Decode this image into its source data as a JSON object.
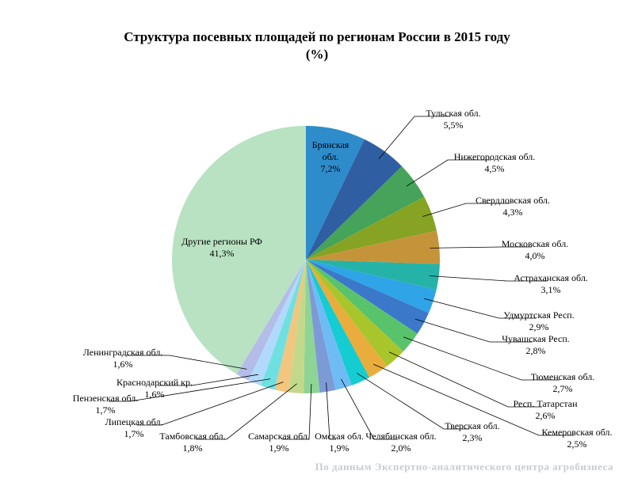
{
  "chart_data": {
    "type": "pie",
    "title": "Структура посевных площадей по регионам России в 2015 году",
    "subtitle": "(%)",
    "unit": "%",
    "slices": [
      {
        "label": "Брянская обл.",
        "value_text": "7,2%",
        "value": 7.2,
        "color": "#2e8ccb"
      },
      {
        "label": "Тульская обл.",
        "value_text": "5,5%",
        "value": 5.5,
        "color": "#2f5ea3"
      },
      {
        "label": "Нижегородская обл.",
        "value_text": "4,5%",
        "value": 4.5,
        "color": "#45a35a"
      },
      {
        "label": "Свердловская обл.",
        "value_text": "4,3%",
        "value": 4.3,
        "color": "#86a323"
      },
      {
        "label": "Московская обл.",
        "value_text": "4,0%",
        "value": 4.0,
        "color": "#c5943a"
      },
      {
        "label": "Астраханская обл.",
        "value_text": "3,1%",
        "value": 3.1,
        "color": "#25b3a7"
      },
      {
        "label": "Удмуртская Респ.",
        "value_text": "2,9%",
        "value": 2.9,
        "color": "#2fa4e7"
      },
      {
        "label": "Чувашская Респ.",
        "value_text": "2,8%",
        "value": 2.8,
        "color": "#3b78c9"
      },
      {
        "label": "Тюменская обл.",
        "value_text": "2,7%",
        "value": 2.7,
        "color": "#58c36b"
      },
      {
        "label": "Респ. Татарстан",
        "value_text": "2,6%",
        "value": 2.6,
        "color": "#a9c52c"
      },
      {
        "label": "Кемеровская обл.",
        "value_text": "2,5%",
        "value": 2.5,
        "color": "#e8ad3c"
      },
      {
        "label": "Тверская обл.",
        "value_text": "2,3%",
        "value": 2.3,
        "color": "#14ccd1"
      },
      {
        "label": "Челябинская обл.",
        "value_text": "2,0%",
        "value": 2.0,
        "color": "#6fbcf5"
      },
      {
        "label": "Омская обл.",
        "value_text": "1,9%",
        "value": 1.9,
        "color": "#7c9ad6"
      },
      {
        "label": "Самарская обл.",
        "value_text": "1,9%",
        "value": 1.9,
        "color": "#8ed494"
      },
      {
        "label": "Тамбовская обл.",
        "value_text": "1,8%",
        "value": 1.8,
        "color": "#c3d98a"
      },
      {
        "label": "Липецкая обл.",
        "value_text": "1,7%",
        "value": 1.7,
        "color": "#f1c67f"
      },
      {
        "label": "Пензенская обл.",
        "value_text": "1,7%",
        "value": 1.7,
        "color": "#6fe0e2"
      },
      {
        "label": "Краснодарский кр.",
        "value_text": "1,6%",
        "value": 1.6,
        "color": "#b1d9fb"
      },
      {
        "label": "Ленинградская обл.",
        "value_text": "1,6%",
        "value": 1.6,
        "color": "#b3bde8"
      },
      {
        "label": "Другие регионы РФ",
        "value_text": "41,3%",
        "value": 41.3,
        "color": "#b8e2c2"
      }
    ]
  },
  "source": "По данным Экспертно-аналитического центра агробизнеса"
}
